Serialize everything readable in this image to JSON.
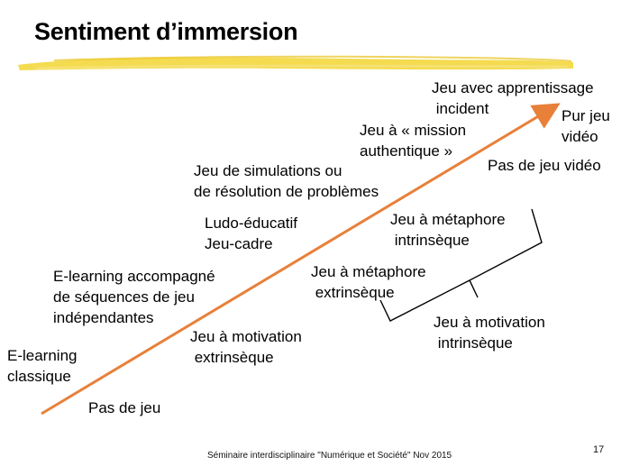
{
  "title": "Sentiment d’immersion",
  "colors": {
    "accent_arrow": "#e8803a",
    "brush": "#f2d531"
  },
  "labels": {
    "elearning_classique": "E-learning\nclassique",
    "pas_de_jeu": "Pas de jeu",
    "elearning_accompagne": "E-learning accompagné\nde séquences de jeu\nindépendantes",
    "ludo_educatif": "Ludo-éducatif\nJeu-cadre",
    "jeu_simulations": "Jeu de simulations ou\nde résolution de problèmes",
    "mission_authentique": "Jeu à « mission\nauthentique »",
    "apprentissage_incident": "Jeu avec apprentissage\n incident",
    "pur_jeu_video": "Pur jeu\nvidéo",
    "pas_de_jeu_video": "Pas de jeu vidéo",
    "motivation_extrinseque": "Jeu à motivation\n extrinsèque",
    "metaphore_extrinseque": "Jeu à métaphore\n extrinsèque",
    "metaphore_intrinseque": "Jeu à métaphore\n intrinsèque",
    "motivation_intrinseque": "Jeu à motivation\n intrinsèque"
  },
  "footer": "Séminaire interdisciplinaire \"Numérique et Société\" Nov 2015",
  "page_number": "17"
}
